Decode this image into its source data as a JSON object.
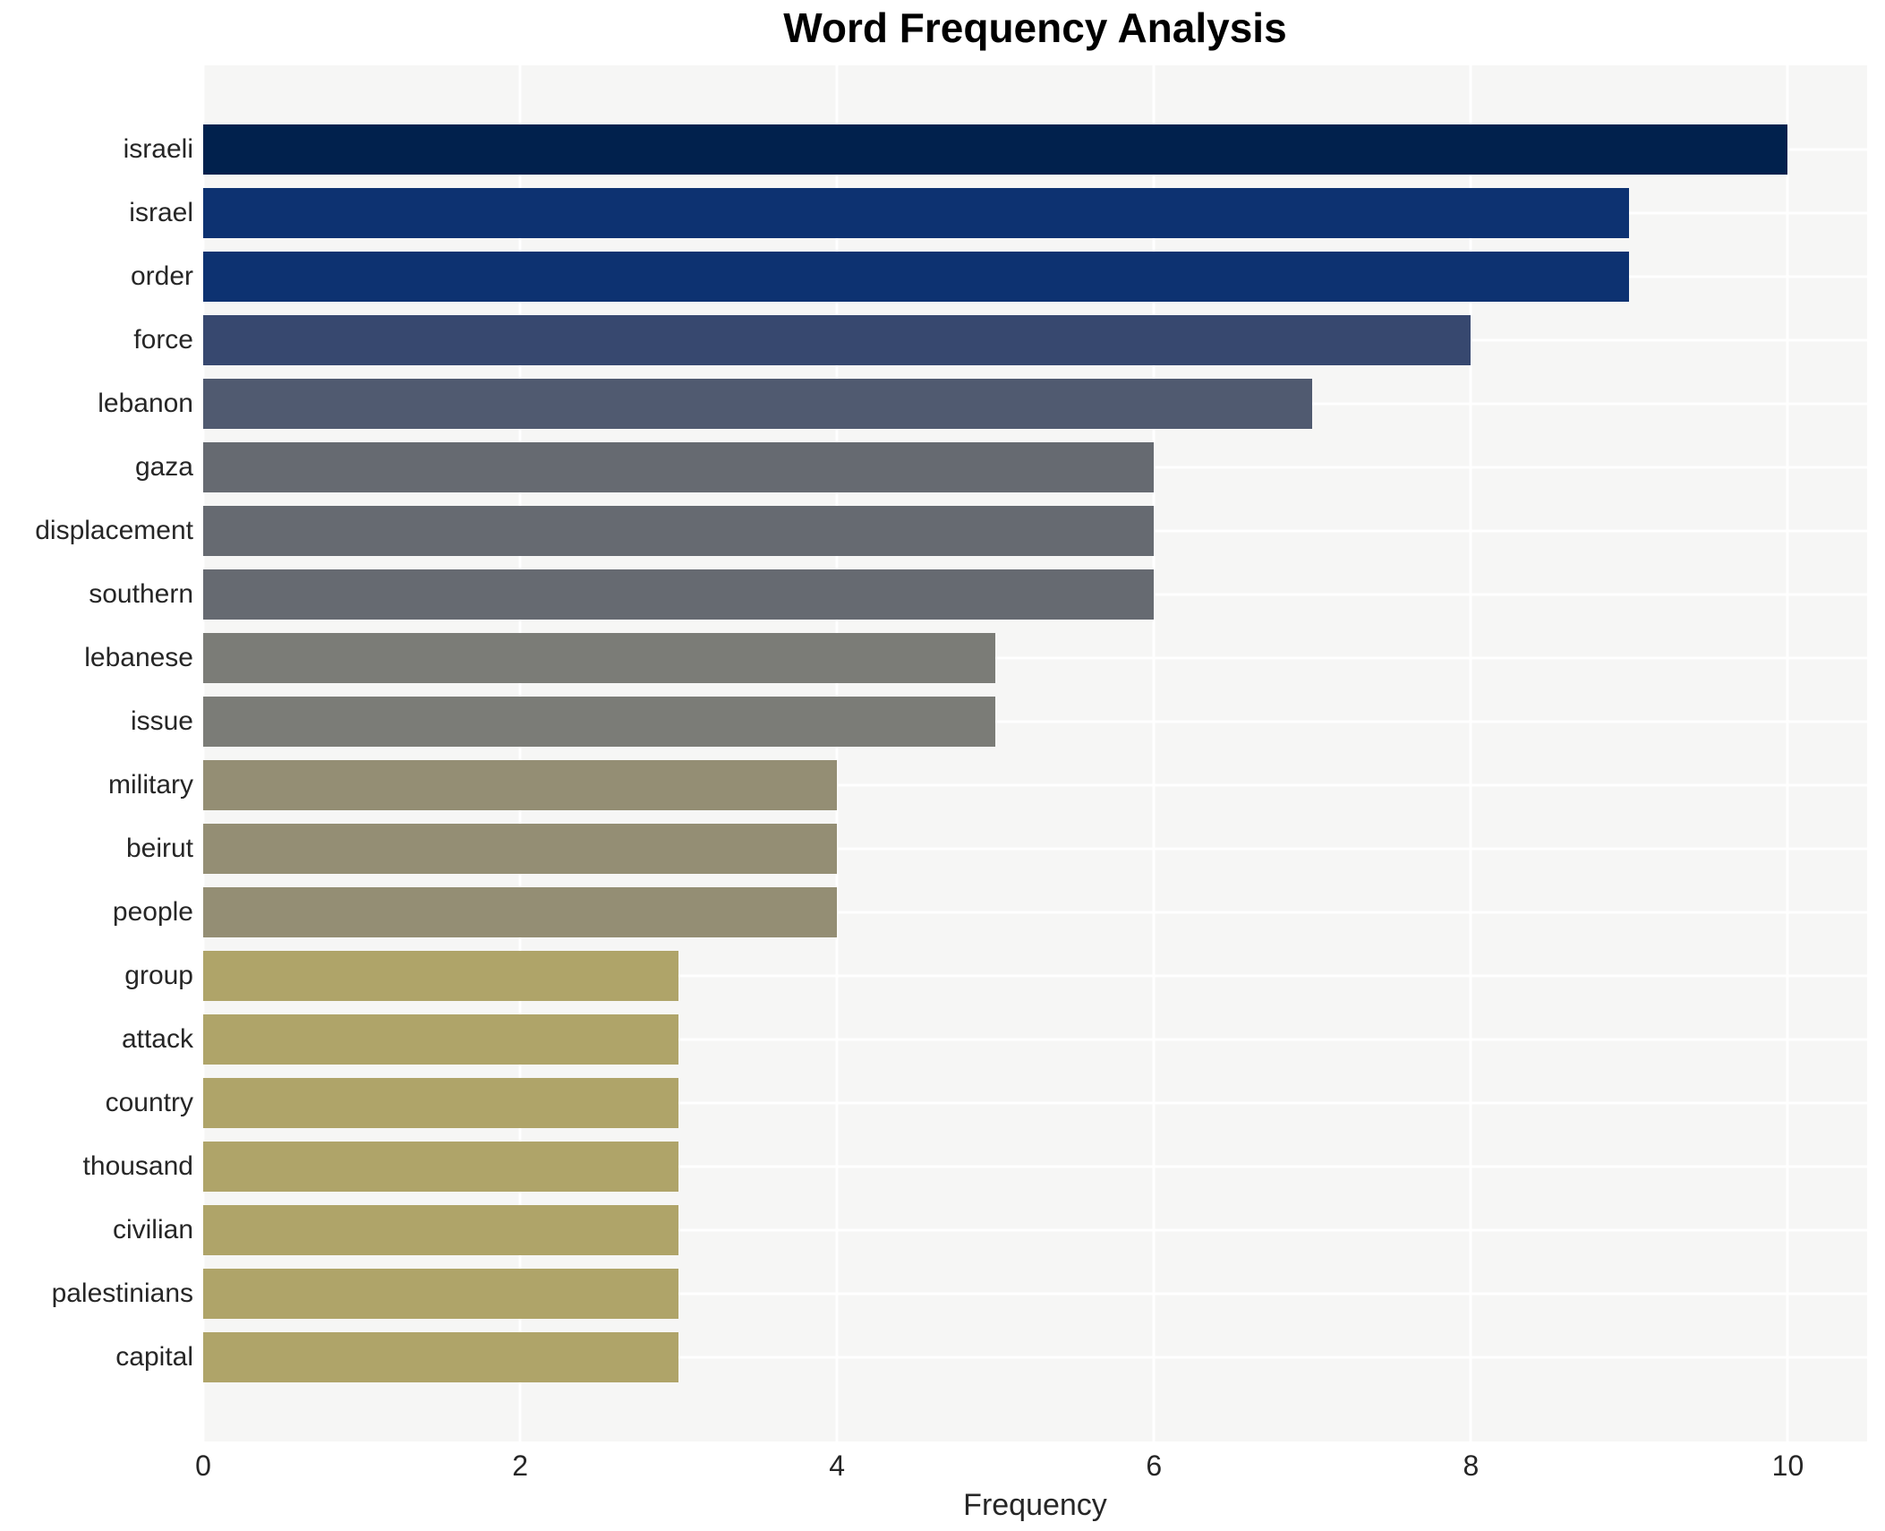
{
  "chart_data": {
    "type": "bar",
    "orientation": "horizontal",
    "title": "Word Frequency Analysis",
    "xlabel": "Frequency",
    "ylabel": "",
    "categories": [
      "israeli",
      "israel",
      "order",
      "force",
      "lebanon",
      "gaza",
      "displacement",
      "southern",
      "lebanese",
      "issue",
      "military",
      "beirut",
      "people",
      "group",
      "attack",
      "country",
      "thousand",
      "civilian",
      "palestinians",
      "capital"
    ],
    "values": [
      10,
      9,
      9,
      8,
      7,
      6,
      6,
      6,
      5,
      5,
      4,
      4,
      4,
      3,
      3,
      3,
      3,
      3,
      3,
      3
    ],
    "bar_colors": [
      "#01214d",
      "#0d3271",
      "#0d3271",
      "#37486f",
      "#505a70",
      "#666a71",
      "#666a71",
      "#666a71",
      "#7b7c77",
      "#7b7c77",
      "#948e74",
      "#948e74",
      "#948e74",
      "#afa469",
      "#afa469",
      "#afa469",
      "#afa469",
      "#afa469",
      "#afa469",
      "#afa469"
    ],
    "xlim": [
      0,
      10.5
    ],
    "xticks": [
      0,
      2,
      4,
      6,
      8,
      10
    ],
    "grid": true,
    "legend_position": "none",
    "colors": {
      "plot_background": "#f6f6f5",
      "gridline": "#ffffff",
      "tick_text": "#262626",
      "label_text": "#262626",
      "title_text": "#000000",
      "figure_background": "#ffffff"
    }
  }
}
